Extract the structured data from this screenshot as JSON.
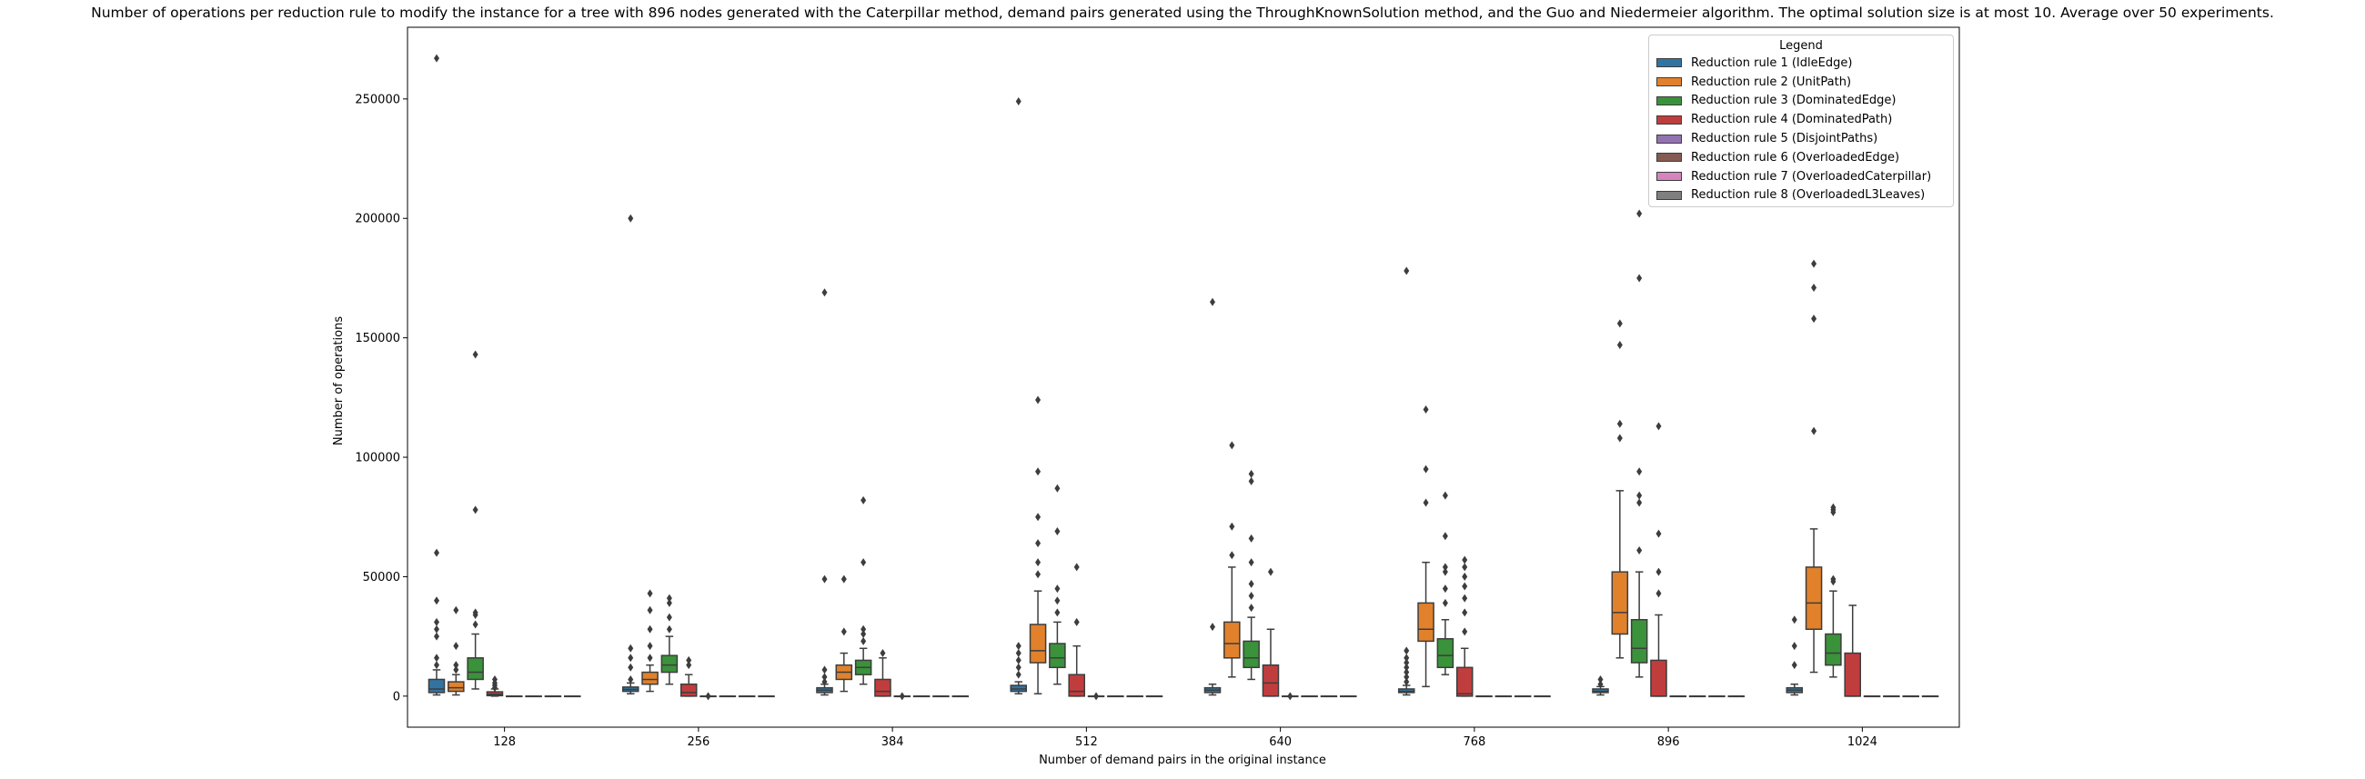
{
  "chart_data": {
    "type": "box",
    "title": "Number of operations per reduction rule to modify the instance for a tree with 896 nodes generated with the Caterpillar method, demand pairs generated using the ThroughKnownSolution method, and the Guo and Niedermeier algorithm. The optimal solution size is at most 10. Average over 50 experiments.",
    "xlabel": "Number of demand pairs in the original instance",
    "ylabel": "Number of operations",
    "categories": [
      "128",
      "256",
      "384",
      "512",
      "640",
      "768",
      "896",
      "1024"
    ],
    "ylim": [
      -13000,
      280000
    ],
    "yticks": [
      0,
      50000,
      100000,
      150000,
      200000,
      250000
    ],
    "ytick_labels": [
      "0",
      "50000",
      "100000",
      "150000",
      "200000",
      "250000"
    ],
    "grid": false,
    "legend": {
      "title": "Legend",
      "position": "top-right",
      "entries": [
        "Reduction rule 1 (IdleEdge)",
        "Reduction rule 2 (UnitPath)",
        "Reduction rule 3 (DominatedEdge)",
        "Reduction rule 4 (DominatedPath)",
        "Reduction rule 5 (DisjointPaths)",
        "Reduction rule 6 (OverloadedEdge)",
        "Reduction rule 7 (OverloadedCaterpillar)",
        "Reduction rule 8 (OverloadedL3Leaves)"
      ]
    },
    "colors": [
      "#3274a1",
      "#e1812c",
      "#3a923a",
      "#c03d3e",
      "#9372b2",
      "#845b53",
      "#d684bd",
      "#7f7f7f"
    ],
    "series": [
      {
        "name": "Reduction rule 1 (IdleEdge)",
        "boxes": [
          {
            "q1": 1500,
            "median": 3000,
            "q3": 7000,
            "whislo": 500,
            "whishi": 11000,
            "fliers": [
              13000,
              16000,
              25000,
              28000,
              31000,
              40000,
              60000,
              267000
            ]
          },
          {
            "q1": 2000,
            "median": 2800,
            "q3": 3800,
            "whislo": 1000,
            "whishi": 5500,
            "fliers": [
              7000,
              12000,
              16000,
              20000,
              200000
            ]
          },
          {
            "q1": 1500,
            "median": 2500,
            "q3": 3500,
            "whislo": 500,
            "whishi": 5000,
            "fliers": [
              6000,
              8000,
              11000,
              49000,
              169000
            ]
          },
          {
            "q1": 2000,
            "median": 3000,
            "q3": 4500,
            "whislo": 1000,
            "whishi": 6000,
            "fliers": [
              9000,
              12000,
              15000,
              18000,
              21000,
              249000
            ]
          },
          {
            "q1": 1500,
            "median": 2500,
            "q3": 3500,
            "whislo": 500,
            "whishi": 5000,
            "fliers": [
              29000,
              165000
            ]
          },
          {
            "q1": 1500,
            "median": 2000,
            "q3": 3000,
            "whislo": 500,
            "whishi": 4500,
            "fliers": [
              6000,
              8000,
              10000,
              12000,
              14000,
              16000,
              19000,
              178000
            ]
          },
          {
            "q1": 1500,
            "median": 2000,
            "q3": 3000,
            "whislo": 500,
            "whishi": 4000,
            "fliers": [
              5000,
              7000
            ]
          },
          {
            "q1": 1500,
            "median": 2500,
            "q3": 3500,
            "whislo": 500,
            "whishi": 5000,
            "fliers": [
              13000,
              21000,
              32000
            ]
          }
        ]
      },
      {
        "name": "Reduction rule 2 (UnitPath)",
        "boxes": [
          {
            "q1": 2000,
            "median": 3500,
            "q3": 6000,
            "whislo": 500,
            "whishi": 9000,
            "fliers": [
              11000,
              13000,
              21000,
              36000
            ]
          },
          {
            "q1": 5000,
            "median": 7000,
            "q3": 10000,
            "whislo": 2000,
            "whishi": 13000,
            "fliers": [
              16000,
              21000,
              28000,
              36000,
              43000
            ]
          },
          {
            "q1": 7000,
            "median": 10000,
            "q3": 13000,
            "whislo": 2000,
            "whishi": 18000,
            "fliers": [
              27000,
              49000
            ]
          },
          {
            "q1": 14000,
            "median": 19000,
            "q3": 30000,
            "whislo": 1000,
            "whishi": 44000,
            "fliers": [
              51000,
              56000,
              64000,
              75000,
              94000,
              124000
            ]
          },
          {
            "q1": 16000,
            "median": 22000,
            "q3": 31000,
            "whislo": 8000,
            "whishi": 54000,
            "fliers": [
              59000,
              71000,
              105000
            ]
          },
          {
            "q1": 23000,
            "median": 28000,
            "q3": 39000,
            "whislo": 4000,
            "whishi": 56000,
            "fliers": [
              81000,
              95000,
              120000
            ]
          },
          {
            "q1": 26000,
            "median": 35000,
            "q3": 52000,
            "whislo": 16000,
            "whishi": 86000,
            "fliers": [
              108000,
              114000,
              147000,
              156000
            ]
          },
          {
            "q1": 28000,
            "median": 39000,
            "q3": 54000,
            "whislo": 10000,
            "whishi": 70000,
            "fliers": [
              111000,
              158000,
              171000,
              181000
            ]
          }
        ]
      },
      {
        "name": "Reduction rule 3 (DominatedEdge)",
        "boxes": [
          {
            "q1": 7000,
            "median": 10000,
            "q3": 16000,
            "whislo": 3000,
            "whishi": 26000,
            "fliers": [
              30000,
              34000,
              35000,
              78000,
              143000
            ]
          },
          {
            "q1": 10000,
            "median": 13000,
            "q3": 17000,
            "whislo": 5000,
            "whishi": 25000,
            "fliers": [
              28000,
              33000,
              39000,
              41000
            ]
          },
          {
            "q1": 9000,
            "median": 12000,
            "q3": 15000,
            "whislo": 5000,
            "whishi": 20000,
            "fliers": [
              23000,
              26000,
              28000,
              56000,
              82000
            ]
          },
          {
            "q1": 12000,
            "median": 16000,
            "q3": 22000,
            "whislo": 5000,
            "whishi": 31000,
            "fliers": [
              35000,
              40000,
              45000,
              69000,
              87000
            ]
          },
          {
            "q1": 12000,
            "median": 16000,
            "q3": 23000,
            "whislo": 7000,
            "whishi": 33000,
            "fliers": [
              37000,
              42000,
              47000,
              56000,
              66000,
              90000,
              93000
            ]
          },
          {
            "q1": 12000,
            "median": 17000,
            "q3": 24000,
            "whislo": 9000,
            "whishi": 32000,
            "fliers": [
              39000,
              45000,
              52000,
              54000,
              67000,
              84000
            ]
          },
          {
            "q1": 14000,
            "median": 20000,
            "q3": 32000,
            "whislo": 8000,
            "whishi": 52000,
            "fliers": [
              61000,
              81000,
              84000,
              94000,
              175000,
              202000
            ]
          },
          {
            "q1": 13000,
            "median": 18000,
            "q3": 26000,
            "whislo": 8000,
            "whishi": 44000,
            "fliers": [
              48000,
              49000,
              77000,
              78000,
              79000
            ]
          }
        ]
      },
      {
        "name": "Reduction rule 4 (DominatedPath)",
        "boxes": [
          {
            "q1": 200,
            "median": 800,
            "q3": 1800,
            "whislo": 0,
            "whishi": 3000,
            "fliers": [
              3500,
              4500,
              5500,
              7000
            ]
          },
          {
            "q1": 0,
            "median": 1500,
            "q3": 5000,
            "whislo": 0,
            "whishi": 9000,
            "fliers": [
              13000,
              15000
            ]
          },
          {
            "q1": 0,
            "median": 2000,
            "q3": 7000,
            "whislo": 0,
            "whishi": 16000,
            "fliers": [
              18000
            ]
          },
          {
            "q1": 0,
            "median": 2000,
            "q3": 9000,
            "whislo": 0,
            "whishi": 21000,
            "fliers": [
              31000,
              54000
            ]
          },
          {
            "q1": 0,
            "median": 5500,
            "q3": 13000,
            "whislo": 0,
            "whishi": 28000,
            "fliers": [
              52000
            ]
          },
          {
            "q1": 0,
            "median": 1000,
            "q3": 12000,
            "whislo": 0,
            "whishi": 20000,
            "fliers": [
              27000,
              35000,
              41000,
              46000,
              50000,
              54000,
              57000
            ]
          },
          {
            "q1": 0,
            "median": 0,
            "q3": 15000,
            "whislo": 0,
            "whishi": 34000,
            "fliers": [
              43000,
              52000,
              68000,
              113000
            ]
          },
          {
            "q1": 0,
            "median": 0,
            "q3": 18000,
            "whislo": 0,
            "whishi": 38000,
            "fliers": []
          }
        ]
      },
      {
        "name": "Reduction rule 5 (DisjointPaths)",
        "boxes": [
          {
            "q1": 0,
            "median": 0,
            "q3": 0,
            "whislo": 0,
            "whishi": 0,
            "fliers": []
          },
          {
            "q1": 0,
            "median": 0,
            "q3": 0,
            "whislo": 0,
            "whishi": 0,
            "fliers": [
              0
            ]
          },
          {
            "q1": 0,
            "median": 0,
            "q3": 0,
            "whislo": 0,
            "whishi": 0,
            "fliers": [
              0
            ]
          },
          {
            "q1": 0,
            "median": 0,
            "q3": 0,
            "whislo": 0,
            "whishi": 0,
            "fliers": [
              0
            ]
          },
          {
            "q1": 0,
            "median": 0,
            "q3": 0,
            "whislo": 0,
            "whishi": 0,
            "fliers": [
              0
            ]
          },
          {
            "q1": 0,
            "median": 0,
            "q3": 0,
            "whislo": 0,
            "whishi": 0,
            "fliers": []
          },
          {
            "q1": 0,
            "median": 0,
            "q3": 0,
            "whislo": 0,
            "whishi": 0,
            "fliers": []
          },
          {
            "q1": 0,
            "median": 0,
            "q3": 0,
            "whislo": 0,
            "whishi": 0,
            "fliers": []
          }
        ]
      },
      {
        "name": "Reduction rule 6 (OverloadedEdge)",
        "boxes": [
          {
            "q1": 0,
            "median": 0,
            "q3": 0,
            "whislo": 0,
            "whishi": 0,
            "fliers": []
          },
          {
            "q1": 0,
            "median": 0,
            "q3": 0,
            "whislo": 0,
            "whishi": 0,
            "fliers": []
          },
          {
            "q1": 0,
            "median": 0,
            "q3": 0,
            "whislo": 0,
            "whishi": 0,
            "fliers": []
          },
          {
            "q1": 0,
            "median": 0,
            "q3": 0,
            "whislo": 0,
            "whishi": 0,
            "fliers": []
          },
          {
            "q1": 0,
            "median": 0,
            "q3": 0,
            "whislo": 0,
            "whishi": 0,
            "fliers": []
          },
          {
            "q1": 0,
            "median": 0,
            "q3": 0,
            "whislo": 0,
            "whishi": 0,
            "fliers": []
          },
          {
            "q1": 0,
            "median": 0,
            "q3": 0,
            "whislo": 0,
            "whishi": 0,
            "fliers": []
          },
          {
            "q1": 0,
            "median": 0,
            "q3": 0,
            "whislo": 0,
            "whishi": 0,
            "fliers": []
          }
        ]
      },
      {
        "name": "Reduction rule 7 (OverloadedCaterpillar)",
        "boxes": [
          {
            "q1": 0,
            "median": 0,
            "q3": 0,
            "whislo": 0,
            "whishi": 0,
            "fliers": []
          },
          {
            "q1": 0,
            "median": 0,
            "q3": 0,
            "whislo": 0,
            "whishi": 0,
            "fliers": []
          },
          {
            "q1": 0,
            "median": 0,
            "q3": 0,
            "whislo": 0,
            "whishi": 0,
            "fliers": []
          },
          {
            "q1": 0,
            "median": 0,
            "q3": 0,
            "whislo": 0,
            "whishi": 0,
            "fliers": []
          },
          {
            "q1": 0,
            "median": 0,
            "q3": 0,
            "whislo": 0,
            "whishi": 0,
            "fliers": []
          },
          {
            "q1": 0,
            "median": 0,
            "q3": 0,
            "whislo": 0,
            "whishi": 0,
            "fliers": []
          },
          {
            "q1": 0,
            "median": 0,
            "q3": 0,
            "whislo": 0,
            "whishi": 0,
            "fliers": []
          },
          {
            "q1": 0,
            "median": 0,
            "q3": 0,
            "whislo": 0,
            "whishi": 0,
            "fliers": []
          }
        ]
      },
      {
        "name": "Reduction rule 8 (OverloadedL3Leaves)",
        "boxes": [
          {
            "q1": 0,
            "median": 0,
            "q3": 0,
            "whislo": 0,
            "whishi": 0,
            "fliers": []
          },
          {
            "q1": 0,
            "median": 0,
            "q3": 0,
            "whislo": 0,
            "whishi": 0,
            "fliers": []
          },
          {
            "q1": 0,
            "median": 0,
            "q3": 0,
            "whislo": 0,
            "whishi": 0,
            "fliers": []
          },
          {
            "q1": 0,
            "median": 0,
            "q3": 0,
            "whislo": 0,
            "whishi": 0,
            "fliers": []
          },
          {
            "q1": 0,
            "median": 0,
            "q3": 0,
            "whislo": 0,
            "whishi": 0,
            "fliers": []
          },
          {
            "q1": 0,
            "median": 0,
            "q3": 0,
            "whislo": 0,
            "whishi": 0,
            "fliers": []
          },
          {
            "q1": 0,
            "median": 0,
            "q3": 0,
            "whislo": 0,
            "whishi": 0,
            "fliers": []
          },
          {
            "q1": 0,
            "median": 0,
            "q3": 0,
            "whislo": 0,
            "whishi": 0,
            "fliers": []
          }
        ]
      }
    ]
  }
}
